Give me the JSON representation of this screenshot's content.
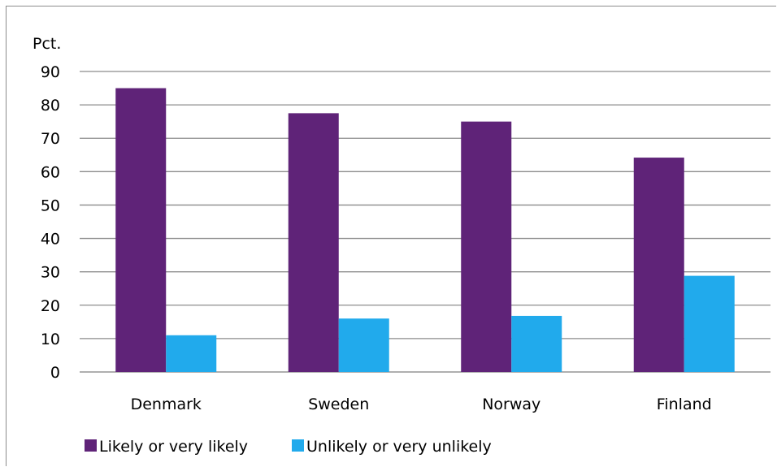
{
  "chart_data": {
    "type": "bar",
    "ylabel": "Pct.",
    "categories": [
      "Denmark",
      "Sweden",
      "Norway",
      "Finland"
    ],
    "series": [
      {
        "name": "Likely or very likely",
        "color": "#5f2378",
        "values": [
          85,
          77.5,
          75,
          64.2
        ]
      },
      {
        "name": "Unlikely or very unlikely",
        "color": "#21aaec",
        "values": [
          11,
          16,
          16.8,
          28.8
        ]
      }
    ],
    "ylim": [
      0,
      90
    ],
    "yticks": [
      0,
      10,
      20,
      30,
      40,
      50,
      60,
      70,
      80,
      90
    ],
    "grid": true,
    "legend_position": "bottom-left"
  }
}
